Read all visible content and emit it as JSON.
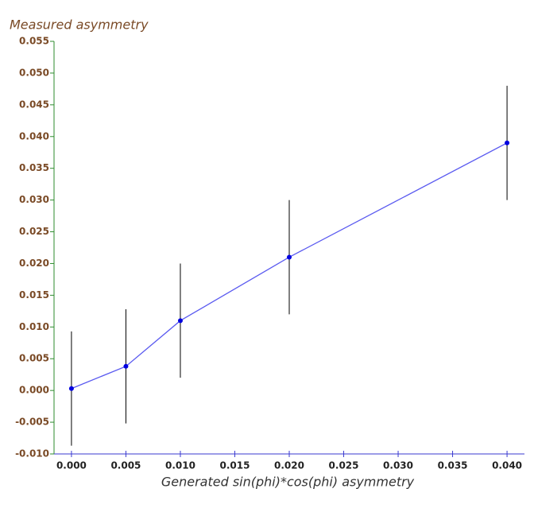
{
  "chart_data": {
    "type": "errorline",
    "title": "Measured asymmetry",
    "x_label": "Generated sin(phi)*cos(phi) asymmetry",
    "series": [
      {
        "color": "#5a5af0",
        "x": [
          0,
          0.005,
          0.01,
          0.02,
          0.04
        ],
        "values": [
          0.0003,
          0.0038,
          0.011,
          0.021,
          0.039
        ],
        "errors": [
          0.009,
          0.009,
          0.009,
          0.009,
          0.009
        ]
      }
    ],
    "point_color": "#0000e0",
    "error_color": "#000000",
    "xlim": [
      -0.0016,
      0.0416
    ],
    "ylim": [
      -0.01,
      0.055
    ],
    "xticks": [
      {
        "value": 0,
        "label": "0.000"
      },
      {
        "value": 0.005,
        "label": "0.005"
      },
      {
        "value": 0.01,
        "label": "0.010"
      },
      {
        "value": 0.015,
        "label": "0.015"
      },
      {
        "value": 0.02,
        "label": "0.020"
      },
      {
        "value": 0.025,
        "label": "0.025"
      },
      {
        "value": 0.03,
        "label": "0.030"
      },
      {
        "value": 0.035,
        "label": "0.035"
      },
      {
        "value": 0.04,
        "label": "0.040"
      }
    ],
    "yticks": [
      {
        "value": -0.01,
        "label": "-0.010"
      },
      {
        "value": -0.005,
        "label": "-0.005"
      },
      {
        "value": 0,
        "label": "0.000"
      },
      {
        "value": 0.005,
        "label": "0.005"
      },
      {
        "value": 0.01,
        "label": "0.010"
      },
      {
        "value": 0.015,
        "label": "0.015"
      },
      {
        "value": 0.02,
        "label": "0.020"
      },
      {
        "value": 0.025,
        "label": "0.025"
      },
      {
        "value": 0.03,
        "label": "0.030"
      },
      {
        "value": 0.035,
        "label": "0.035"
      },
      {
        "value": 0.04,
        "label": "0.040"
      },
      {
        "value": 0.045,
        "label": "0.045"
      },
      {
        "value": 0.05,
        "label": "0.050"
      },
      {
        "value": 0.055,
        "label": "0.055"
      }
    ],
    "y_axis_color": "#2e8b2e",
    "x_axis_color": "#3a3ad0",
    "y_label_color": "#7a4a26"
  }
}
